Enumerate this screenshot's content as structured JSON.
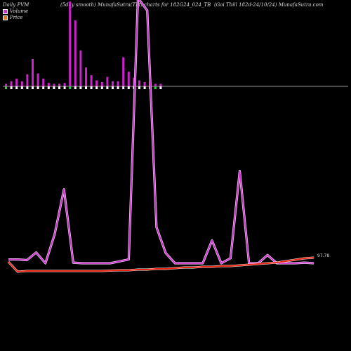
{
  "header": {
    "left": "Daily PVM",
    "middle": "(5day smooth) MunafaSutra(TM) charts for 182G24_024_TB",
    "right": "(Goi  Tbill 182d-24/10/24) MunafaSutra.com"
  },
  "legend": {
    "volume_label": "Volume",
    "price_label": "Price",
    "volume_color": "#cc33cc",
    "price_color": "#dd7722"
  },
  "chart_data": {
    "type": "line",
    "title": "",
    "xlabel": "",
    "ylabel": "",
    "grid": false,
    "legend_position": "top-left",
    "last_price_label": "97.78",
    "volume_bars": [
      3,
      6,
      9,
      6,
      14,
      32,
      15,
      9,
      4,
      3,
      3,
      4,
      99,
      77,
      42,
      22,
      13,
      7,
      5,
      11,
      6,
      6,
      34,
      17,
      10,
      7,
      5,
      6,
      3,
      3
    ],
    "volume_bar_colors": [
      "green",
      "white",
      "white",
      "white",
      "white",
      "white",
      "white",
      "white",
      "white",
      "white",
      "white",
      "white",
      "green",
      "white",
      "white",
      "white",
      "white",
      "white",
      "white",
      "white",
      "white",
      "white",
      "white",
      "white",
      "white",
      "white",
      "white",
      "white",
      "green",
      "white"
    ],
    "series": [
      {
        "name": "Volume",
        "color": "#cc33cc",
        "values": [
          6,
          6,
          5,
          17,
          0,
          46,
          117,
          1,
          0,
          0,
          0,
          0,
          3,
          6,
          420,
          400,
          57,
          16,
          0,
          0,
          0,
          0,
          36,
          0,
          8,
          146,
          0,
          0,
          13,
          0,
          0,
          0,
          1,
          0
        ]
      },
      {
        "name": "Price",
        "color": "#ee2211",
        "values": [
          97.69,
          97.55,
          97.56,
          97.56,
          97.56,
          97.56,
          97.56,
          97.56,
          97.56,
          97.56,
          97.56,
          97.565,
          97.57,
          97.57,
          97.58,
          97.58,
          97.59,
          97.59,
          97.6,
          97.61,
          97.61,
          97.62,
          97.62,
          97.63,
          97.63,
          97.64,
          97.65,
          97.66,
          97.67,
          97.68,
          97.7,
          97.72,
          97.74,
          97.75
        ]
      }
    ]
  }
}
